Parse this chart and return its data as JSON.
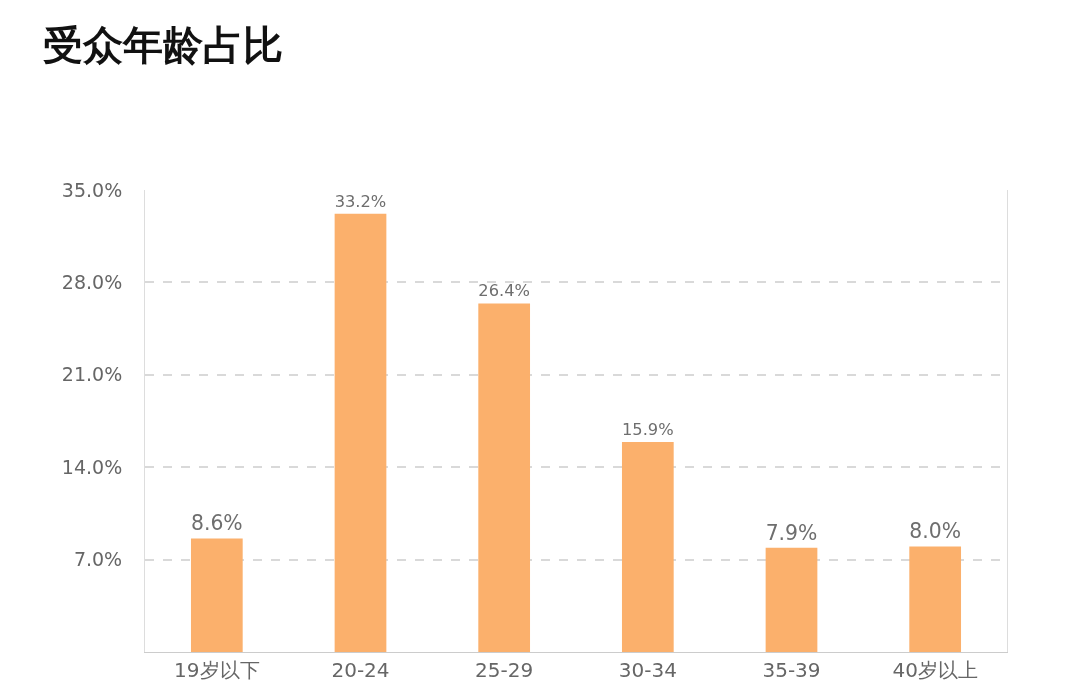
{
  "chart_data": {
    "type": "bar",
    "title": "受众年龄占比",
    "categories": [
      "19岁以下",
      "20-24",
      "25-29",
      "30-34",
      "35-39",
      "40岁以上"
    ],
    "values": [
      8.6,
      33.2,
      26.4,
      15.9,
      7.9,
      8.0
    ],
    "value_labels": [
      "8.6%",
      "33.2%",
      "26.4%",
      "15.9%",
      "7.9%",
      "8.0%"
    ],
    "color": "#fbb06c",
    "ylim": [
      0,
      35
    ],
    "yticks": [
      {
        "value": 0,
        "label": null
      },
      {
        "value": 7,
        "label": "7.0%"
      },
      {
        "value": 14,
        "label": "14.0%"
      },
      {
        "value": 21,
        "label": "21.0%"
      },
      {
        "value": 28,
        "label": "28.0%"
      },
      {
        "value": 35,
        "label": "35.0%"
      }
    ],
    "grid": "y",
    "line_style": "dashed",
    "legend": false
  }
}
